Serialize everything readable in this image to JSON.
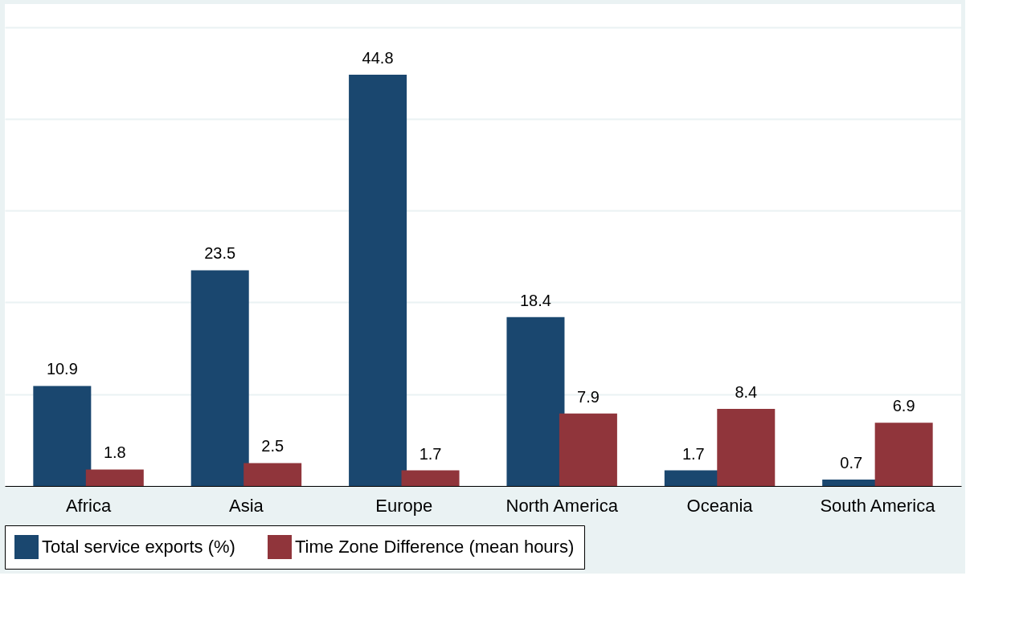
{
  "chart_data": {
    "type": "bar",
    "categories": [
      "Africa",
      "Asia",
      "Europe",
      "North America",
      "Oceania",
      "South America"
    ],
    "series": [
      {
        "name": "Total service exports (%)",
        "color": "#1a476f",
        "values": [
          10.9,
          23.5,
          44.8,
          18.4,
          1.7,
          0.7
        ]
      },
      {
        "name": "Time Zone Difference (mean hours)",
        "color": "#90353b",
        "values": [
          1.8,
          2.5,
          1.7,
          7.9,
          8.4,
          6.9
        ]
      }
    ],
    "ylim": [
      0,
      52.5
    ],
    "yticks": [
      {
        "value": 0,
        "label": null
      },
      {
        "value": 10,
        "label": null
      },
      {
        "value": 20,
        "label": null
      },
      {
        "value": 30,
        "label": null
      },
      {
        "value": 40,
        "label": null
      },
      {
        "value": 50,
        "label": null
      }
    ],
    "tick_labels": "x",
    "grid": "y",
    "legend": "bottom",
    "data_labels": true
  }
}
